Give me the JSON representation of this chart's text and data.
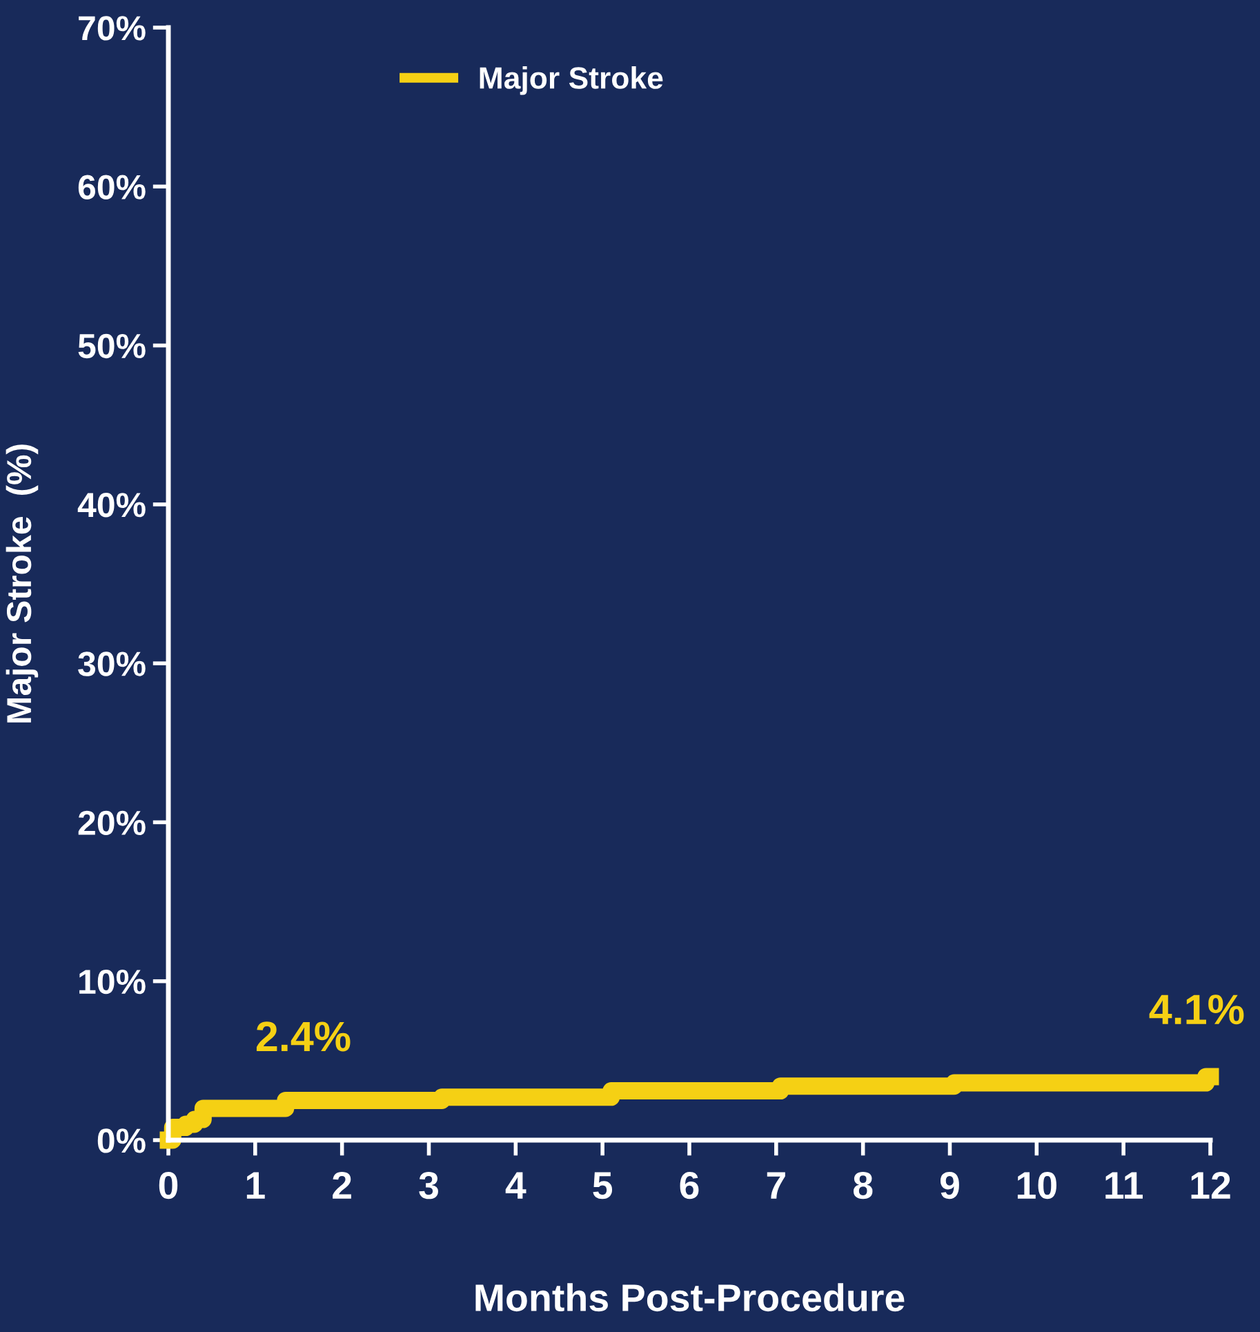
{
  "chart_data": {
    "type": "step",
    "xlabel": "Months Post-Procedure",
    "ylabel": "Major Stroke  (%)",
    "series": [
      {
        "name": "Major Stroke",
        "color": "#f5d014",
        "x": [
          0,
          0.05,
          0.2,
          0.3,
          0.4,
          1.35,
          3.15,
          5.1,
          7.05,
          9.05,
          11.95,
          12
        ],
        "values": [
          0,
          0.8,
          1.0,
          1.3,
          2.0,
          2.5,
          2.7,
          3.1,
          3.4,
          3.6,
          4.0,
          4.0
        ]
      }
    ],
    "annotations": [
      {
        "text": "2.4%",
        "x": 1,
        "y": 2.4
      },
      {
        "text": "4.1%",
        "x": 12,
        "y": 4.1
      }
    ],
    "xlim": [
      0,
      12
    ],
    "ylim": [
      0,
      70
    ],
    "xticks": [
      0,
      1,
      2,
      3,
      4,
      5,
      6,
      7,
      8,
      9,
      10,
      11,
      12
    ],
    "yticks": [
      {
        "value": 0,
        "label": "0%"
      },
      {
        "value": 10,
        "label": "10%"
      },
      {
        "value": 20,
        "label": "20%"
      },
      {
        "value": 30,
        "label": "30%"
      },
      {
        "value": 40,
        "label": "40%"
      },
      {
        "value": 50,
        "label": "50%"
      },
      {
        "value": 60,
        "label": "60%"
      },
      {
        "value": 70,
        "label": "70%"
      }
    ],
    "grid": false,
    "legend": "top left"
  }
}
